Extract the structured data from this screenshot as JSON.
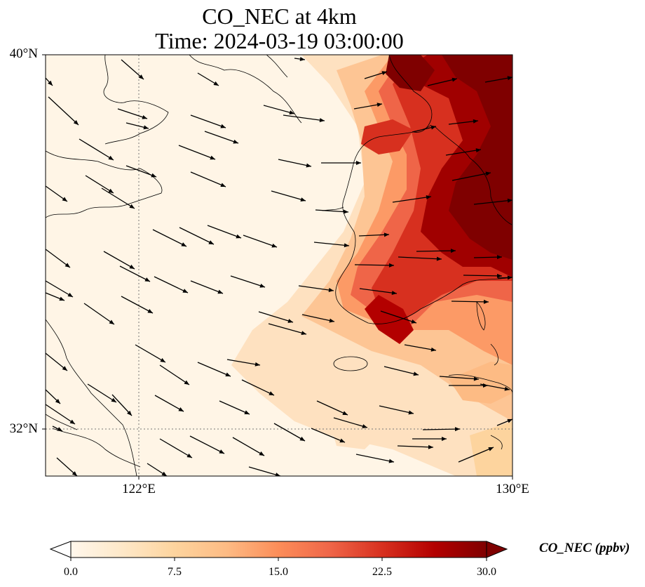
{
  "title": {
    "line1": "CO_NEC at 4km",
    "line2": "Time: 2024-03-19 03:00:00"
  },
  "map": {
    "lon_range": [
      120,
      130
    ],
    "lat_range": [
      31,
      40
    ],
    "lat_ticks": [
      {
        "value": 40,
        "label": "40°N"
      },
      {
        "value": 32,
        "label": "32°N"
      }
    ],
    "lon_ticks": [
      {
        "value": 122,
        "label": "122°E"
      },
      {
        "value": 130,
        "label": "130°E"
      }
    ],
    "gridlines": "dotted at 122°E and 32°N",
    "background_color": "#fff5e6",
    "field": "CO_NEC concentration (ppbv), shaded with OrRd colormap; high values (>30) over Korean peninsula and eastern sea, moderate plume across Yellow Sea toward southwest Korea; low values over eastern China",
    "wind_vectors": "arrows pointing east-southeast over China and Yellow Sea, east / east-northeast over Korea"
  },
  "colorbar": {
    "label": "CO_NEC (ppbv)",
    "min": 0.0,
    "max": 30.0,
    "extend": "both",
    "colormap": [
      "#fff7ec",
      "#fee8c8",
      "#fdd49e",
      "#fdbb84",
      "#fc8d59",
      "#ef6548",
      "#d7301f",
      "#b30000",
      "#7f0000"
    ],
    "ticks": [
      {
        "value": 0.0,
        "label": "0.0"
      },
      {
        "value": 7.5,
        "label": "7.5"
      },
      {
        "value": 15.0,
        "label": "15.0"
      },
      {
        "value": 22.5,
        "label": "22.5"
      },
      {
        "value": 30.0,
        "label": "30.0"
      }
    ]
  }
}
